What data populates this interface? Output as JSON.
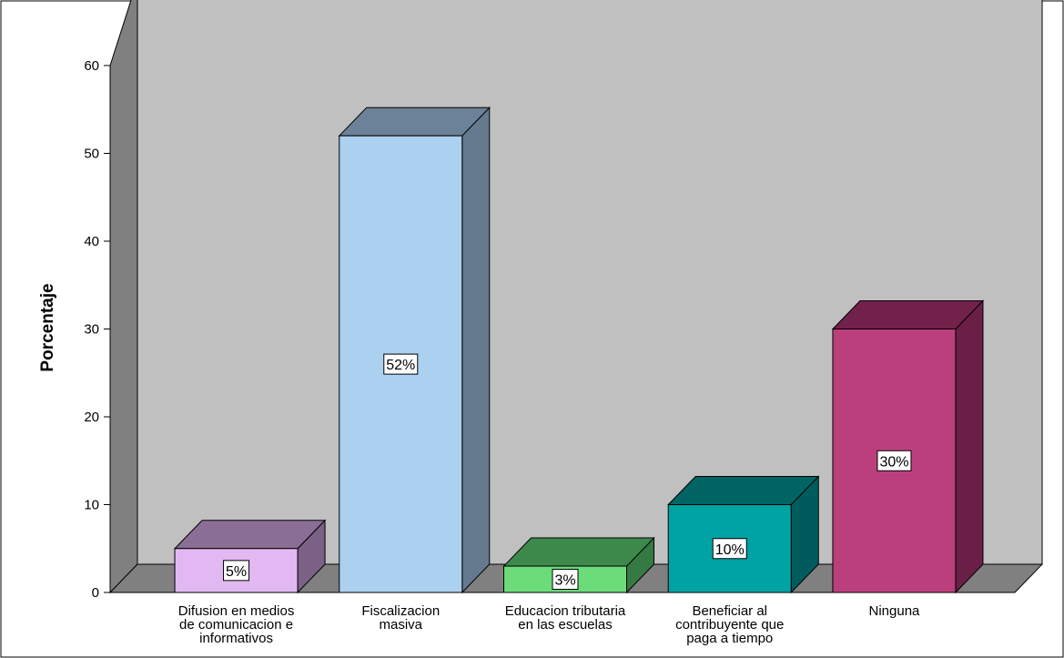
{
  "chart_data": {
    "type": "bar",
    "ylabel": "Porcentaje",
    "xlabel": "",
    "ylim": [
      0,
      60
    ],
    "yticks": [
      "0",
      "10",
      "20",
      "30",
      "40",
      "50",
      "60"
    ],
    "grid": false,
    "categories": [
      "Difusion en medios de comunicacion e informativos",
      "Fiscalizacion masiva",
      "Educacion tributaria en las escuelas",
      "Beneficiar al contribuyente que paga a tiempo",
      "Ninguna"
    ],
    "category_lines": [
      [
        "Difusion en medios",
        "de comunicacion e",
        "informativos"
      ],
      [
        "Fiscalizacion",
        "masiva"
      ],
      [
        "Educacion tributaria",
        "en las escuelas"
      ],
      [
        "Beneficiar al",
        "contribuyente que",
        "paga a tiempo"
      ],
      [
        "Ninguna"
      ]
    ],
    "values": [
      5,
      52,
      3,
      10,
      30
    ],
    "data_labels": [
      "5%",
      "52%",
      "3%",
      "10%",
      "30%"
    ],
    "colors": [
      {
        "front": "#e2b8f2",
        "top": "#8a6e96",
        "side": "#7a6185"
      },
      {
        "front": "#acd0ef",
        "top": "#6b8298",
        "side": "#657a8f"
      },
      {
        "front": "#6cdc7b",
        "top": "#3e8a4c",
        "side": "#357a43"
      },
      {
        "front": "#00a3a3",
        "top": "#006464",
        "side": "#005c5c"
      },
      {
        "front": "#bb3f7d",
        "top": "#72224a",
        "side": "#6a2046"
      }
    ],
    "wall_color": "#c0c0c0",
    "side_wall_color": "#808080",
    "floor_color": "#808080"
  }
}
